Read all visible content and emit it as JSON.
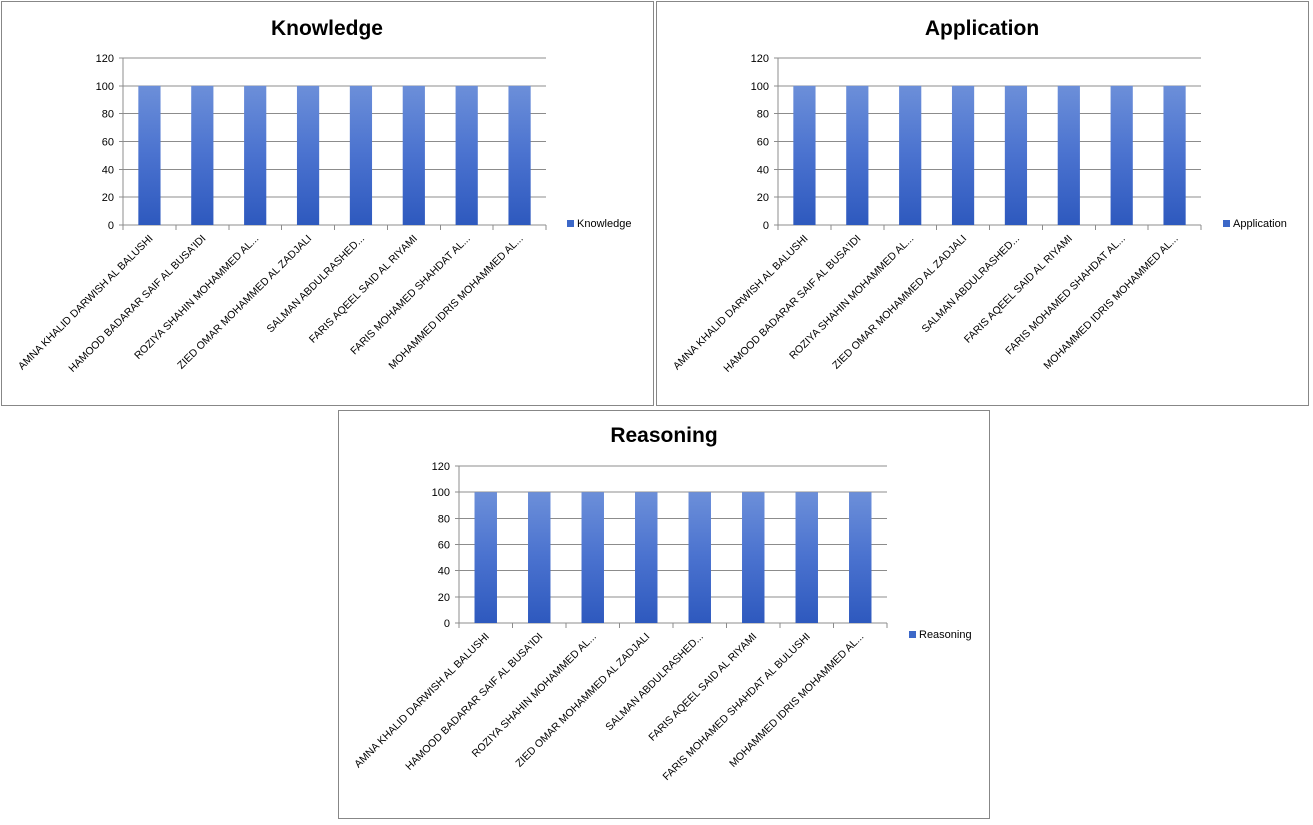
{
  "chart_data": [
    {
      "type": "bar",
      "title": "Knowledge",
      "categories": [
        "AMNA KHALID DARWISH AL BALUSHI",
        "HAMOOD BADARAR SAIF AL BUSA'IDI",
        "ROZIYA SHAHIN MOHAMMED AL...",
        "ZIED OMAR MOHAMMED AL ZADJALI",
        "SALMAN ABDULRASHED...",
        "FARIS AQEEL SAID AL RIYAMI",
        "FARIS MOHAMED SHAHDAT AL...",
        "MOHAMMED IDRIS MOHAMMED AL..."
      ],
      "series": [
        {
          "name": "Knowledge",
          "values": [
            100,
            100,
            100,
            100,
            100,
            100,
            100,
            100
          ]
        }
      ],
      "ylim": [
        0,
        120
      ],
      "yticks": [
        "0",
        "20",
        "40",
        "60",
        "80",
        "100",
        "120"
      ],
      "grid": true,
      "legend": "right"
    },
    {
      "type": "bar",
      "title": "Application",
      "categories": [
        "AMNA KHALID DARWISH AL BALUSHI",
        "HAMOOD BADARAR SAIF AL BUSA'IDI",
        "ROZIYA SHAHIN MOHAMMED AL...",
        "ZIED OMAR MOHAMMED AL ZADJALI",
        "SALMAN ABDULRASHED...",
        "FARIS AQEEL SAID AL RIYAMI",
        "FARIS MOHAMED SHAHDAT AL...",
        "MOHAMMED IDRIS MOHAMMED AL..."
      ],
      "series": [
        {
          "name": "Application",
          "values": [
            100,
            100,
            100,
            100,
            100,
            100,
            100,
            100
          ]
        }
      ],
      "ylim": [
        0,
        120
      ],
      "yticks": [
        "0",
        "20",
        "40",
        "60",
        "80",
        "100",
        "120"
      ],
      "grid": true,
      "legend": "right"
    },
    {
      "type": "bar",
      "title": "Reasoning",
      "categories": [
        "AMNA KHALID DARWISH AL BALUSHI",
        "HAMOOD BADARAR SAIF AL BUSA'IDI",
        "ROZIYA SHAHIN MOHAMMED AL...",
        "ZIED OMAR MOHAMMED AL ZADJALI",
        "SALMAN ABDULRASHED...",
        "FARIS AQEEL SAID AL RIYAMI",
        "FARIS MOHAMED SHAHDAT AL BULUSHI",
        "MOHAMMED IDRIS MOHAMMED AL..."
      ],
      "series": [
        {
          "name": "Reasoning",
          "values": [
            100,
            100,
            100,
            100,
            100,
            100,
            100,
            100
          ]
        }
      ],
      "ylim": [
        0,
        120
      ],
      "yticks": [
        "0",
        "20",
        "40",
        "60",
        "80",
        "100",
        "120"
      ],
      "grid": true,
      "legend": "right"
    }
  ],
  "colors": {
    "bar_light": "#6c8fd9",
    "bar_mid": "#4a72cf",
    "bar_dark": "#2e59be",
    "grid": "#8c8c8c",
    "legend_swatch": "#3c68c8"
  }
}
